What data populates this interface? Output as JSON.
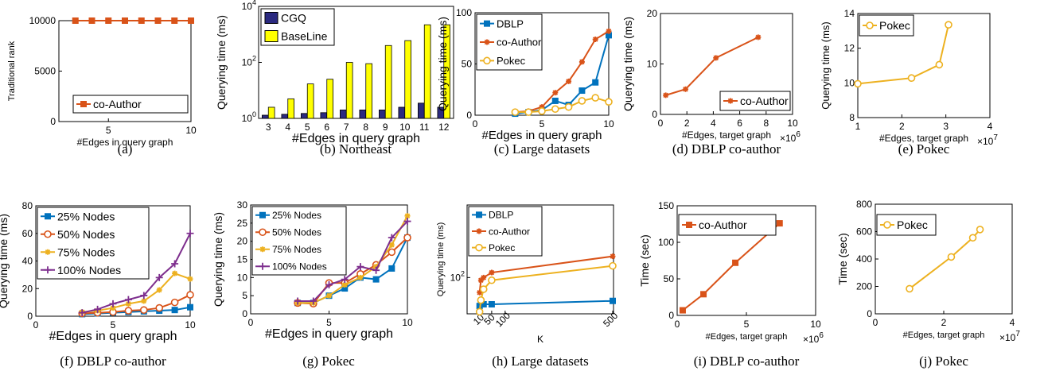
{
  "colors": {
    "blue": "#0072BD",
    "orange": "#D95319",
    "yellow": "#EDB120",
    "purple": "#7E2F8E",
    "navy": "#2B2A80",
    "bright_yellow": "#FFFF00"
  },
  "chart_data": [
    {
      "type": "line",
      "caption": "(a)",
      "xlabel": "#Edges in query graph",
      "ylabel": "Traditional rank",
      "xlim": [
        2,
        10
      ],
      "ylim": [
        0,
        10000
      ],
      "xticks": [
        5,
        10
      ],
      "yticks": [
        0,
        5000,
        10000
      ],
      "legend_pos": "bottom-right",
      "series": [
        {
          "name": "co-Author",
          "marker": "square",
          "x": [
            3,
            4,
            5,
            6,
            7,
            8,
            9,
            10
          ],
          "y": [
            10000,
            10000,
            10000,
            10000,
            10000,
            10000,
            10000,
            10000
          ]
        }
      ]
    },
    {
      "type": "bar",
      "caption": "(b) Northeast",
      "xlabel": "#Edges in query graph",
      "ylabel": "Querying time (ms)",
      "yscale": "log",
      "ylim": [
        1,
        10000
      ],
      "yticks": [
        "10^0",
        "10^2",
        "10^4"
      ],
      "categories": [
        "3",
        "4",
        "5",
        "6",
        "7",
        "8",
        "9",
        "10",
        "11",
        "12"
      ],
      "legend_pos": "top-left",
      "series": [
        {
          "name": "CGQ",
          "values": [
            1.3,
            1.4,
            1.5,
            1.6,
            2.0,
            2.0,
            2.0,
            2.5,
            3.5,
            2.5
          ]
        },
        {
          "name": "BaseLine",
          "values": [
            2.5,
            5,
            17,
            25,
            100,
            90,
            400,
            600,
            2200,
            2200
          ]
        }
      ]
    },
    {
      "type": "line",
      "caption": "(c) Large datasets",
      "xlabel": "#Edges in query graph",
      "ylabel": "Querying time (ms)",
      "xlim": [
        0,
        10
      ],
      "ylim": [
        0,
        100
      ],
      "xticks": [
        0,
        5,
        10
      ],
      "yticks": [
        0,
        50,
        100
      ],
      "legend_pos": "top-left",
      "series": [
        {
          "name": "DBLP",
          "marker": "square",
          "x": [
            3,
            4,
            5,
            6,
            7,
            8,
            9,
            10
          ],
          "y": [
            1.5,
            3,
            5,
            14,
            10,
            24,
            32,
            78
          ]
        },
        {
          "name": "co-Author",
          "marker": "star",
          "x": [
            3,
            4,
            5,
            6,
            7,
            8,
            9,
            10
          ],
          "y": [
            3,
            4,
            8,
            22,
            33,
            52,
            74,
            82
          ]
        },
        {
          "name": "Pokec",
          "marker": "circle",
          "x": [
            3,
            4,
            5,
            6,
            7,
            8,
            9,
            10
          ],
          "y": [
            3,
            3,
            4,
            6,
            8,
            14,
            17,
            13
          ]
        }
      ]
    },
    {
      "type": "line",
      "caption": "(d) DBLP co-author",
      "xlabel": "#Edges, target graph",
      "ylabel": "Querying time (ms)",
      "xexp": "×10^6",
      "xlim": [
        0,
        10
      ],
      "ylim": [
        0,
        20
      ],
      "xticks": [
        0,
        2,
        4,
        6,
        8,
        10
      ],
      "yticks": [
        0,
        10,
        20
      ],
      "legend_pos": "bottom-right",
      "series": [
        {
          "name": "co-Author",
          "marker": "star",
          "x": [
            0.4,
            1.9,
            4.2,
            7.4
          ],
          "y": [
            3.8,
            5.0,
            11.2,
            15.3
          ]
        }
      ]
    },
    {
      "type": "line",
      "caption": "(e) Pokec",
      "xlabel": "#Edges, target graph",
      "ylabel": "Querying time (ms)",
      "xexp": "×10^7",
      "xlim": [
        1,
        4
      ],
      "ylim": [
        8,
        14
      ],
      "xticks": [
        1,
        2,
        3,
        4
      ],
      "yticks": [
        8,
        10,
        12,
        14
      ],
      "legend_pos": "top-left",
      "series": [
        {
          "name": "Pokec",
          "marker": "circle",
          "x": [
            1,
            2.22,
            2.85,
            3.06
          ],
          "y": [
            9.95,
            10.28,
            11.05,
            13.35
          ]
        }
      ]
    },
    {
      "type": "line",
      "caption": "(f) DBLP co-author",
      "xlabel": "#Edges in query graph",
      "ylabel": "Querying time (ms)",
      "xlim": [
        0,
        10
      ],
      "ylim": [
        0,
        80
      ],
      "xticks": [
        0,
        5,
        10
      ],
      "yticks": [
        0,
        20,
        40,
        60,
        80
      ],
      "legend_pos": "top-left",
      "series": [
        {
          "name": "25%  Nodes",
          "marker": "square",
          "x": [
            3,
            4,
            5,
            6,
            7,
            8,
            9,
            10
          ],
          "y": [
            1.5,
            2,
            2.5,
            3,
            3.5,
            4,
            4.5,
            6.5
          ]
        },
        {
          "name": "50%  Nodes",
          "marker": "circle",
          "x": [
            3,
            4,
            5,
            6,
            7,
            8,
            9,
            10
          ],
          "y": [
            2,
            2.5,
            3,
            4,
            4.5,
            6,
            10,
            15.5
          ]
        },
        {
          "name": "75%  Nodes",
          "marker": "star",
          "x": [
            3,
            4,
            5,
            6,
            7,
            8,
            9,
            10
          ],
          "y": [
            3,
            4,
            6,
            9,
            11,
            19,
            31,
            27
          ]
        },
        {
          "name": "100% Nodes",
          "marker": "plus",
          "x": [
            3,
            4,
            5,
            6,
            7,
            8,
            9,
            10
          ],
          "y": [
            2.5,
            5,
            9,
            12,
            15,
            28,
            38,
            60
          ]
        }
      ]
    },
    {
      "type": "line",
      "caption": "(g) Pokec",
      "xlabel": "#Edges in query graph",
      "ylabel": "Querying time (ms)",
      "xlim": [
        0,
        10
      ],
      "ylim": [
        0,
        30
      ],
      "xticks": [
        0,
        5,
        10
      ],
      "yticks": [
        0,
        5,
        10,
        15,
        20,
        25,
        30
      ],
      "legend_pos": "top-left",
      "series": [
        {
          "name": "25%  Nodes",
          "marker": "square",
          "x": [
            3,
            4,
            5,
            6,
            7,
            8,
            9,
            10
          ],
          "y": [
            3,
            3,
            5,
            7,
            10,
            9.5,
            12.5,
            21
          ]
        },
        {
          "name": "50%  Nodes",
          "marker": "circle",
          "x": [
            3,
            4,
            5,
            6,
            7,
            8,
            9,
            10
          ],
          "y": [
            3,
            2.8,
            8.5,
            8.5,
            11,
            13.5,
            17,
            21
          ]
        },
        {
          "name": "75%  Nodes",
          "marker": "star",
          "x": [
            3,
            4,
            5,
            6,
            7,
            8,
            9,
            10
          ],
          "y": [
            3,
            3,
            5,
            8,
            10,
            13,
            19,
            27
          ]
        },
        {
          "name": "100% Nodes",
          "marker": "plus",
          "x": [
            3,
            4,
            5,
            6,
            7,
            8,
            9,
            10
          ],
          "y": [
            3.5,
            3.5,
            8,
            9.5,
            13,
            12,
            21,
            25.5
          ]
        }
      ]
    },
    {
      "type": "line",
      "caption": "(h) Large datasets",
      "xlabel": "K",
      "ylabel": "Querying time (ms)",
      "yscale": "log",
      "xlim": [
        0,
        500
      ],
      "ylim": [
        50,
        400
      ],
      "xticks": [
        "10",
        "50",
        "100",
        "500"
      ],
      "yticks": [
        "10^2"
      ],
      "legend_pos": "top-left",
      "series": [
        {
          "name": "DBLP",
          "marker": "square",
          "x": [
            5,
            10,
            20,
            50,
            500
          ],
          "y": [
            58,
            60,
            60,
            60,
            64
          ]
        },
        {
          "name": "co-Author",
          "marker": "star",
          "x": [
            5,
            10,
            20,
            50,
            500
          ],
          "y": [
            75,
            95,
            100,
            110,
            150
          ]
        },
        {
          "name": "Pokec",
          "marker": "circle",
          "x": [
            5,
            10,
            20,
            50,
            500
          ],
          "y": [
            52,
            65,
            80,
            95,
            125
          ]
        }
      ]
    },
    {
      "type": "line",
      "caption": "(i) DBLP co-author",
      "xlabel": "#Edges, target graph",
      "ylabel": "Time (sec)",
      "xexp": "×10^6",
      "xlim": [
        0,
        10
      ],
      "ylim": [
        0,
        150
      ],
      "xticks": [
        0,
        5,
        10
      ],
      "yticks": [
        0,
        50,
        100,
        150
      ],
      "legend_pos": "top-left",
      "series": [
        {
          "name": "co-Author",
          "marker": "square",
          "x": [
            0.4,
            1.9,
            4.2,
            7.4
          ],
          "y": [
            7,
            29,
            72,
            126
          ]
        }
      ]
    },
    {
      "type": "line",
      "caption": "(j) Pokec",
      "xlabel": "#Edges, target graph",
      "ylabel": "Time (sec)",
      "xexp": "×10^7",
      "xlim": [
        0,
        4
      ],
      "ylim": [
        0,
        800
      ],
      "xticks": [
        0,
        2,
        4
      ],
      "yticks": [
        0,
        200,
        400,
        600,
        800
      ],
      "legend_pos": "top-left",
      "series": [
        {
          "name": "Pokec",
          "marker": "circle",
          "x": [
            1,
            2.22,
            2.85,
            3.06
          ],
          "y": [
            183,
            415,
            555,
            615
          ]
        }
      ]
    }
  ]
}
